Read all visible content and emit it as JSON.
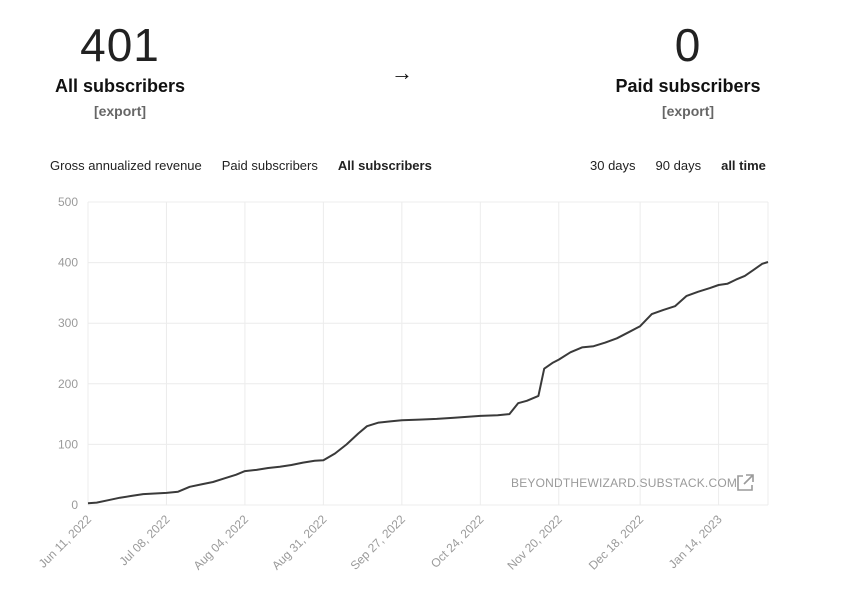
{
  "summary": {
    "all": {
      "count": "401",
      "label": "All subscribers",
      "export": "[export]"
    },
    "arrow": "→",
    "paid": {
      "count": "0",
      "label": "Paid subscribers",
      "export": "[export]"
    }
  },
  "metric_tabs": [
    {
      "label": "Gross annualized revenue",
      "active": false
    },
    {
      "label": "Paid subscribers",
      "active": false
    },
    {
      "label": "All subscribers",
      "active": true
    }
  ],
  "range_tabs": [
    {
      "label": "30 days",
      "active": false
    },
    {
      "label": "90 days",
      "active": false
    },
    {
      "label": "all time",
      "active": true
    }
  ],
  "watermark": {
    "text": "BEYONDTHEWIZARD.SUBSTACK.COM",
    "icon": "external-link-icon"
  },
  "colors": {
    "line": "#3a3a3a",
    "grid": "#ececec",
    "tick": "#9a9a9a"
  },
  "chart_data": {
    "type": "line",
    "title": "",
    "xlabel": "",
    "ylabel": "",
    "ylim": [
      0,
      500
    ],
    "yticks": [
      0,
      100,
      200,
      300,
      400,
      500
    ],
    "xlim": [
      "2022-06-11",
      "2023-01-31"
    ],
    "xticks": [
      "2022-06-11",
      "2022-07-08",
      "2022-08-04",
      "2022-08-31",
      "2022-09-27",
      "2022-10-24",
      "2022-11-20",
      "2022-12-18",
      "2023-01-14"
    ],
    "xtick_labels": [
      "Jun 11, 2022",
      "Jul 08, 2022",
      "Aug 04, 2022",
      "Aug 31, 2022",
      "Sep 27, 2022",
      "Oct 24, 2022",
      "Nov 20, 2022",
      "Dec 18, 2022",
      "Jan 14, 2023"
    ],
    "grid": true,
    "series": [
      {
        "points": [
          [
            "2022-06-11",
            3
          ],
          [
            "2022-06-14",
            4
          ],
          [
            "2022-06-18",
            8
          ],
          [
            "2022-06-22",
            12
          ],
          [
            "2022-06-26",
            15
          ],
          [
            "2022-06-30",
            18
          ],
          [
            "2022-07-04",
            19
          ],
          [
            "2022-07-08",
            20
          ],
          [
            "2022-07-12",
            22
          ],
          [
            "2022-07-16",
            30
          ],
          [
            "2022-07-20",
            34
          ],
          [
            "2022-07-24",
            38
          ],
          [
            "2022-07-28",
            44
          ],
          [
            "2022-08-01",
            50
          ],
          [
            "2022-08-04",
            56
          ],
          [
            "2022-08-08",
            58
          ],
          [
            "2022-08-12",
            61
          ],
          [
            "2022-08-16",
            63
          ],
          [
            "2022-08-20",
            66
          ],
          [
            "2022-08-24",
            70
          ],
          [
            "2022-08-28",
            73
          ],
          [
            "2022-08-31",
            74
          ],
          [
            "2022-09-04",
            85
          ],
          [
            "2022-09-08",
            100
          ],
          [
            "2022-09-12",
            118
          ],
          [
            "2022-09-15",
            130
          ],
          [
            "2022-09-19",
            136
          ],
          [
            "2022-09-23",
            138
          ],
          [
            "2022-09-27",
            140
          ],
          [
            "2022-10-03",
            141
          ],
          [
            "2022-10-09",
            142
          ],
          [
            "2022-10-15",
            144
          ],
          [
            "2022-10-21",
            146
          ],
          [
            "2022-10-24",
            147
          ],
          [
            "2022-10-30",
            148
          ],
          [
            "2022-11-03",
            150
          ],
          [
            "2022-11-06",
            168
          ],
          [
            "2022-11-09",
            172
          ],
          [
            "2022-11-13",
            180
          ],
          [
            "2022-11-15",
            225
          ],
          [
            "2022-11-18",
            235
          ],
          [
            "2022-11-20",
            240
          ],
          [
            "2022-11-24",
            252
          ],
          [
            "2022-11-28",
            260
          ],
          [
            "2022-12-02",
            262
          ],
          [
            "2022-12-06",
            268
          ],
          [
            "2022-12-10",
            275
          ],
          [
            "2022-12-14",
            285
          ],
          [
            "2022-12-18",
            295
          ],
          [
            "2022-12-22",
            315
          ],
          [
            "2022-12-26",
            322
          ],
          [
            "2022-12-30",
            328
          ],
          [
            "2023-01-03",
            345
          ],
          [
            "2023-01-07",
            352
          ],
          [
            "2023-01-11",
            358
          ],
          [
            "2023-01-14",
            363
          ],
          [
            "2023-01-17",
            365
          ],
          [
            "2023-01-20",
            372
          ],
          [
            "2023-01-23",
            378
          ],
          [
            "2023-01-26",
            388
          ],
          [
            "2023-01-29",
            398
          ],
          [
            "2023-01-31",
            401
          ]
        ]
      }
    ]
  }
}
